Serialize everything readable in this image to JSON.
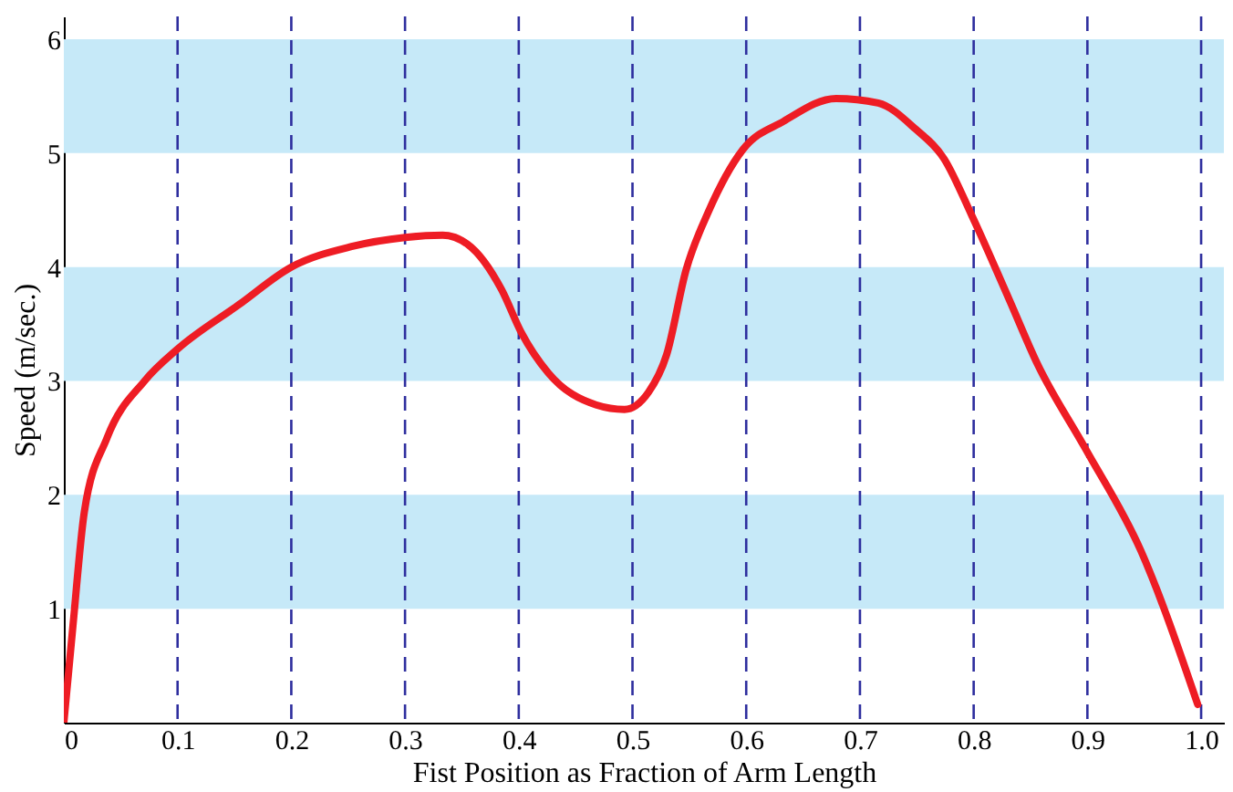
{
  "chart_data": {
    "type": "line",
    "xlabel": "Fist Position as Fraction of Arm Length",
    "ylabel": "Speed (m/sec.)",
    "x": [
      0,
      0.008,
      0.018,
      0.038,
      0.071,
      0.1,
      0.154,
      0.2,
      0.253,
      0.3,
      0.333,
      0.355,
      0.385,
      0.402,
      0.426,
      0.468,
      0.493,
      0.514,
      0.53,
      0.547,
      0.567,
      0.597,
      0.633,
      0.679,
      0.716,
      0.749,
      0.774,
      0.798,
      0.831,
      0.856,
      0.898,
      0.947,
      0.997
    ],
    "series": [
      {
        "color": "#ee1c24",
        "values": [
          0,
          0.85,
          1.85,
          2.5,
          3.0,
          3.28,
          3.67,
          4.0,
          4.18,
          4.26,
          4.28,
          4.2,
          3.8,
          3.43,
          3.07,
          2.79,
          2.75,
          2.9,
          3.23,
          3.97,
          4.49,
          5.03,
          5.28,
          5.48,
          5.44,
          5.21,
          4.95,
          4.46,
          3.72,
          3.15,
          2.41,
          1.51,
          0.16
        ]
      }
    ],
    "xlim": [
      0,
      1.02
    ],
    "ylim": [
      0,
      6.2
    ],
    "xticks": [
      0,
      0.1,
      0.2,
      0.3,
      0.4,
      0.5,
      0.6,
      0.7,
      0.8,
      0.9,
      {
        "value": 1,
        "label": "1.0"
      }
    ],
    "yticks": [
      1,
      2,
      3,
      4,
      5,
      6
    ],
    "bands": [
      {
        "axis": "y",
        "from": 1,
        "to": 2,
        "color": "#c6e9f8"
      },
      {
        "axis": "y",
        "from": 3,
        "to": 4,
        "color": "#c6e9f8"
      },
      {
        "axis": "y",
        "from": 5,
        "to": 6,
        "color": "#c6e9f8"
      }
    ],
    "ref_lines": [
      {
        "axis": "x",
        "value": 0.1,
        "color": "#2e2e9e",
        "line_style": "dashed"
      },
      {
        "axis": "x",
        "value": 0.2,
        "color": "#2e2e9e",
        "line_style": "dashed"
      },
      {
        "axis": "x",
        "value": 0.3,
        "color": "#2e2e9e",
        "line_style": "dashed"
      },
      {
        "axis": "x",
        "value": 0.4,
        "color": "#2e2e9e",
        "line_style": "dashed"
      },
      {
        "axis": "x",
        "value": 0.5,
        "color": "#2e2e9e",
        "line_style": "dashed"
      },
      {
        "axis": "x",
        "value": 0.6,
        "color": "#2e2e9e",
        "line_style": "dashed"
      },
      {
        "axis": "x",
        "value": 0.7,
        "color": "#2e2e9e",
        "line_style": "dashed"
      },
      {
        "axis": "x",
        "value": 0.8,
        "color": "#2e2e9e",
        "line_style": "dashed"
      },
      {
        "axis": "x",
        "value": 0.9,
        "color": "#2e2e9e",
        "line_style": "dashed"
      },
      {
        "axis": "x",
        "value": 1.0,
        "color": "#2e2e9e",
        "line_style": "dashed"
      }
    ],
    "line_style": "solid"
  }
}
